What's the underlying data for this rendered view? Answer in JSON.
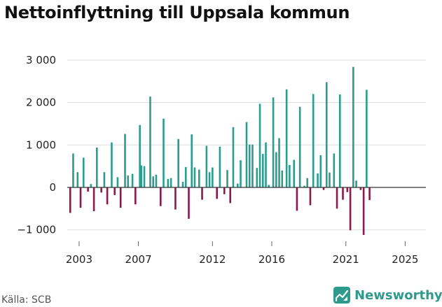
{
  "title": "Nettoinflyttning till Uppsala kommun",
  "source": "Källa: SCB",
  "brand": "Newsworthy",
  "colors": {
    "positive": "#2a9d8f",
    "negative": "#8b1a4a",
    "grid": "#dddddd",
    "axis": "#333333"
  },
  "chart_data": {
    "type": "bar",
    "title": "Nettoinflyttning till Uppsala kommun",
    "xlabel": "",
    "ylabel": "",
    "ylim": [
      -1200,
      3200
    ],
    "yticks": [
      -1000,
      0,
      1000,
      2000,
      3000
    ],
    "ytick_labels": [
      "−1 000",
      "0",
      "1 000",
      "2 000",
      "3 000"
    ],
    "xticks": [
      2003,
      2007,
      2012,
      2016,
      2021,
      2025
    ],
    "xlim": [
      2002.2,
      2026.4
    ],
    "grid": true,
    "legend": "none",
    "series": [
      {
        "name": "Nettoinflyttning",
        "points": [
          [
            2002.4,
            -600
          ],
          [
            2002.6,
            800
          ],
          [
            2002.9,
            360
          ],
          [
            2003.1,
            -480
          ],
          [
            2003.3,
            700
          ],
          [
            2003.6,
            -100
          ],
          [
            2003.8,
            80
          ],
          [
            2004.0,
            -560
          ],
          [
            2004.2,
            940
          ],
          [
            2004.5,
            -120
          ],
          [
            2004.7,
            360
          ],
          [
            2004.9,
            -400
          ],
          [
            2005.2,
            1060
          ],
          [
            2005.4,
            -180
          ],
          [
            2005.6,
            240
          ],
          [
            2005.8,
            -480
          ],
          [
            2006.1,
            1260
          ],
          [
            2006.3,
            280
          ],
          [
            2006.6,
            320
          ],
          [
            2006.8,
            -400
          ],
          [
            2007.1,
            1470
          ],
          [
            2007.2,
            520
          ],
          [
            2007.4,
            500
          ],
          [
            2007.8,
            2140
          ],
          [
            2008.0,
            260
          ],
          [
            2008.2,
            300
          ],
          [
            2008.5,
            -440
          ],
          [
            2008.7,
            1620
          ],
          [
            2009.0,
            200
          ],
          [
            2009.2,
            220
          ],
          [
            2009.5,
            -520
          ],
          [
            2009.7,
            1140
          ],
          [
            2010.0,
            130
          ],
          [
            2010.2,
            480
          ],
          [
            2010.4,
            -740
          ],
          [
            2010.6,
            1250
          ],
          [
            2010.8,
            470
          ],
          [
            2011.1,
            420
          ],
          [
            2011.3,
            -290
          ],
          [
            2011.6,
            980
          ],
          [
            2011.8,
            360
          ],
          [
            2012.0,
            470
          ],
          [
            2012.3,
            -270
          ],
          [
            2012.5,
            960
          ],
          [
            2012.8,
            -160
          ],
          [
            2013.0,
            410
          ],
          [
            2013.2,
            -370
          ],
          [
            2013.4,
            1420
          ],
          [
            2013.7,
            90
          ],
          [
            2013.9,
            640
          ],
          [
            2014.3,
            1540
          ],
          [
            2014.5,
            1010
          ],
          [
            2014.7,
            1010
          ],
          [
            2015.0,
            460
          ],
          [
            2015.2,
            1970
          ],
          [
            2015.4,
            790
          ],
          [
            2015.6,
            1060
          ],
          [
            2015.8,
            60
          ],
          [
            2016.1,
            2120
          ],
          [
            2016.3,
            830
          ],
          [
            2016.5,
            1160
          ],
          [
            2016.7,
            400
          ],
          [
            2017.0,
            2310
          ],
          [
            2017.2,
            530
          ],
          [
            2017.5,
            650
          ],
          [
            2017.7,
            -550
          ],
          [
            2017.9,
            1900
          ],
          [
            2018.2,
            40
          ],
          [
            2018.4,
            220
          ],
          [
            2018.6,
            -420
          ],
          [
            2018.8,
            2200
          ],
          [
            2019.1,
            330
          ],
          [
            2019.3,
            760
          ],
          [
            2019.5,
            -60
          ],
          [
            2019.7,
            2480
          ],
          [
            2019.9,
            350
          ],
          [
            2020.2,
            800
          ],
          [
            2020.4,
            -500
          ],
          [
            2020.6,
            2190
          ],
          [
            2020.8,
            -290
          ],
          [
            2021.1,
            -110
          ],
          [
            2021.3,
            -1010
          ],
          [
            2021.5,
            2840
          ],
          [
            2021.7,
            160
          ],
          [
            2022.0,
            -60
          ],
          [
            2022.2,
            -1120
          ],
          [
            2022.4,
            2300
          ],
          [
            2022.6,
            -300
          ]
        ]
      }
    ]
  }
}
